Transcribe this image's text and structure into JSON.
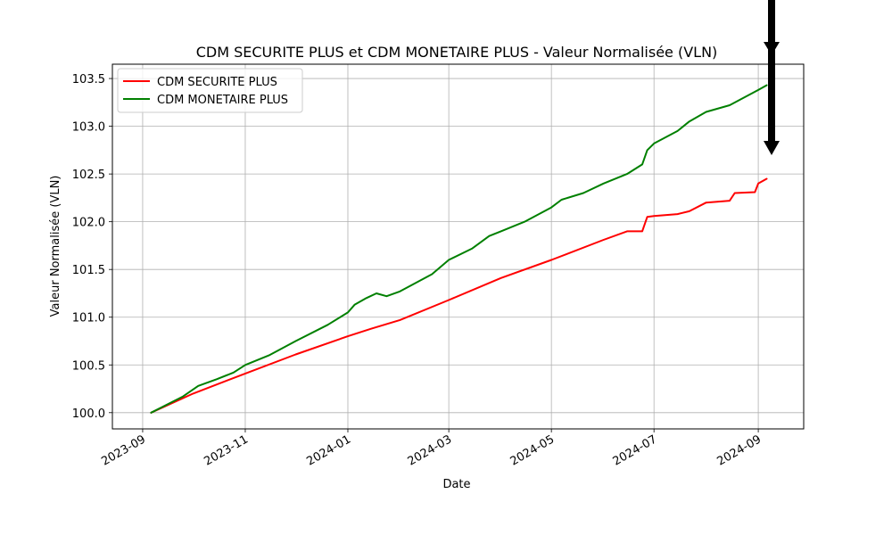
{
  "chart_data": {
    "type": "line",
    "title": "CDM SECURITE PLUS et CDM MONETAIRE PLUS - Valeur Normalisée (VLN)",
    "xlabel": "Date",
    "ylabel": "Valeur Normalisée (VLN)",
    "xlim": [
      "2023-08-14",
      "2024-09-28"
    ],
    "ylim": [
      99.83,
      103.65
    ],
    "x_ticks": [
      "2023-09",
      "2023-11",
      "2024-01",
      "2024-03",
      "2024-05",
      "2024-07",
      "2024-09"
    ],
    "y_ticks": [
      "100.0",
      "100.5",
      "101.0",
      "101.5",
      "102.0",
      "102.5",
      "103.0",
      "103.5"
    ],
    "grid": true,
    "legend_position": "upper-left",
    "series": [
      {
        "name": "CDM SECURITE PLUS",
        "color": "#ff0000",
        "points": [
          [
            "2023-09-06",
            100.0
          ],
          [
            "2023-10-01",
            100.2
          ],
          [
            "2023-11-01",
            100.41
          ],
          [
            "2023-12-01",
            100.61
          ],
          [
            "2024-01-01",
            100.8
          ],
          [
            "2024-01-15",
            100.88
          ],
          [
            "2024-02-01",
            100.97
          ],
          [
            "2024-03-01",
            101.18
          ],
          [
            "2024-04-01",
            101.41
          ],
          [
            "2024-05-01",
            101.6
          ],
          [
            "2024-06-01",
            101.81
          ],
          [
            "2024-06-15",
            101.9
          ],
          [
            "2024-06-24",
            101.9
          ],
          [
            "2024-06-27",
            102.05
          ],
          [
            "2024-07-01",
            102.06
          ],
          [
            "2024-07-15",
            102.08
          ],
          [
            "2024-07-22",
            102.11
          ],
          [
            "2024-08-01",
            102.2
          ],
          [
            "2024-08-15",
            102.22
          ],
          [
            "2024-08-18",
            102.3
          ],
          [
            "2024-08-30",
            102.31
          ],
          [
            "2024-09-01",
            102.4
          ],
          [
            "2024-09-06",
            102.45
          ]
        ]
      },
      {
        "name": "CDM MONETAIRE PLUS",
        "color": "#008000",
        "points": [
          [
            "2023-09-06",
            100.0
          ],
          [
            "2023-09-25",
            100.17
          ],
          [
            "2023-10-04",
            100.28
          ],
          [
            "2023-10-15",
            100.35
          ],
          [
            "2023-10-25",
            100.42
          ],
          [
            "2023-11-01",
            100.5
          ],
          [
            "2023-11-15",
            100.6
          ],
          [
            "2023-12-01",
            100.75
          ],
          [
            "2023-12-20",
            100.92
          ],
          [
            "2024-01-01",
            101.05
          ],
          [
            "2024-01-05",
            101.13
          ],
          [
            "2024-01-12",
            101.2
          ],
          [
            "2024-01-18",
            101.25
          ],
          [
            "2024-01-24",
            101.22
          ],
          [
            "2024-02-01",
            101.27
          ],
          [
            "2024-02-20",
            101.45
          ],
          [
            "2024-03-01",
            101.6
          ],
          [
            "2024-03-15",
            101.72
          ],
          [
            "2024-03-25",
            101.85
          ],
          [
            "2024-04-01",
            101.9
          ],
          [
            "2024-04-15",
            102.0
          ],
          [
            "2024-05-01",
            102.15
          ],
          [
            "2024-05-07",
            102.23
          ],
          [
            "2024-05-20",
            102.3
          ],
          [
            "2024-06-01",
            102.4
          ],
          [
            "2024-06-15",
            102.5
          ],
          [
            "2024-06-24",
            102.6
          ],
          [
            "2024-06-27",
            102.75
          ],
          [
            "2024-07-01",
            102.82
          ],
          [
            "2024-07-15",
            102.95
          ],
          [
            "2024-07-22",
            103.05
          ],
          [
            "2024-08-01",
            103.15
          ],
          [
            "2024-08-15",
            103.22
          ],
          [
            "2024-09-01",
            103.38
          ],
          [
            "2024-09-06",
            103.43
          ]
        ]
      }
    ],
    "annotation": {
      "type": "arrow",
      "direction": "down",
      "color": "#000000"
    }
  }
}
